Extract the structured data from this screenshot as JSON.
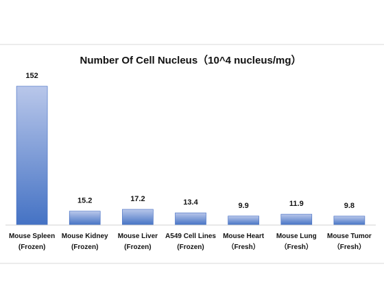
{
  "chart_data": {
    "type": "bar",
    "title": "Number Of Cell Nucleus（10^4 nucleus/mg）",
    "categories": [
      [
        "Mouse Spleen",
        "(Frozen)"
      ],
      [
        "Mouse Kidney",
        "(Frozen)"
      ],
      [
        "Mouse Liver",
        "(Frozen)"
      ],
      [
        "A549 Cell Lines",
        "(Frozen)"
      ],
      [
        "Mouse Heart",
        "（Fresh）"
      ],
      [
        "Mouse Lung",
        "（Fresh）"
      ],
      [
        "Mouse Tumor",
        "（Fresh）"
      ]
    ],
    "values": [
      152,
      15.2,
      17.2,
      13.4,
      9.9,
      11.9,
      9.8
    ],
    "value_labels": [
      "152",
      "15.2",
      "17.2",
      "13.4",
      "9.9",
      "11.9",
      "9.8"
    ],
    "ylim": [
      0,
      152
    ],
    "grid": false,
    "colors": {
      "bar_top": "#b9c7ea",
      "bar_bottom": "#4472c4",
      "bar_edge": "#3a66c0"
    }
  }
}
